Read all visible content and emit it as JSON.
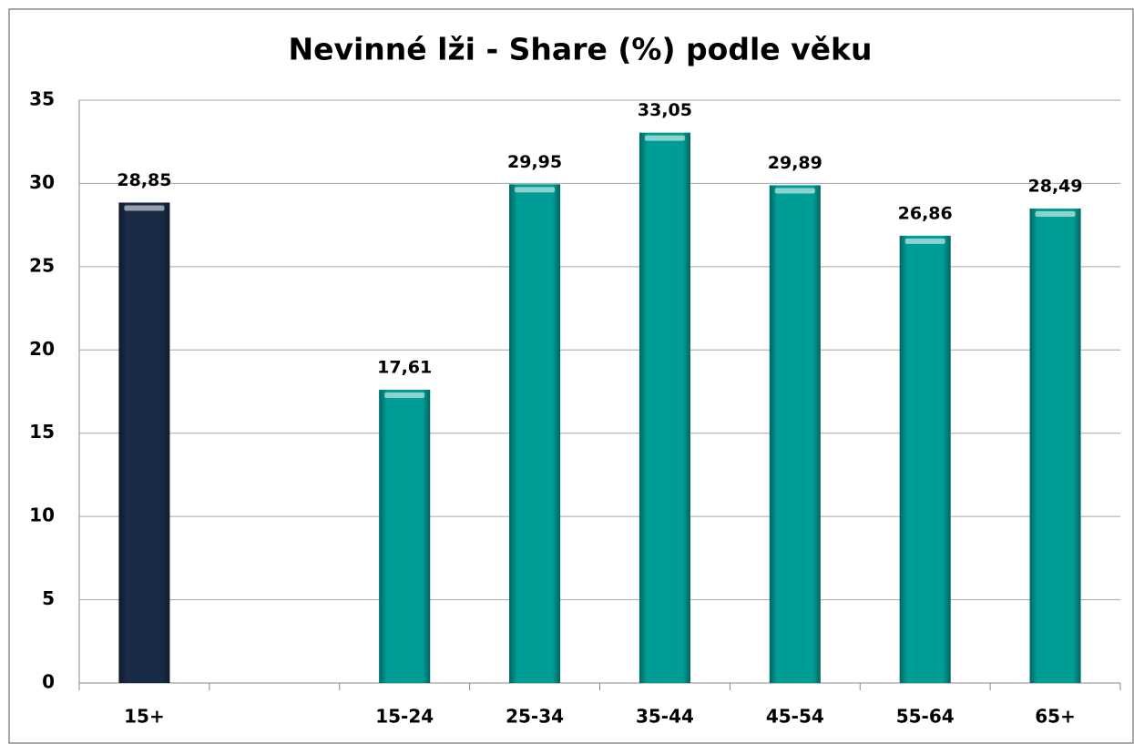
{
  "chart_data": {
    "type": "bar",
    "title": "Nevinné lži - Share (%) podle věku",
    "categories": [
      "15+",
      null,
      "15-24",
      "25-34",
      "35-44",
      "45-54",
      "55-64",
      "65+"
    ],
    "values": [
      28.85,
      null,
      17.61,
      29.95,
      33.05,
      29.89,
      26.86,
      28.49
    ],
    "value_labels": [
      "28,85",
      null,
      "17,61",
      "29,95",
      "33,05",
      "29,89",
      "26,86",
      "28,49"
    ],
    "colors": [
      "#182a45",
      null,
      "#009c96",
      "#009c96",
      "#009c96",
      "#009c96",
      "#009c96",
      "#009c96"
    ],
    "ylim": [
      0,
      35
    ],
    "yticks": [
      0,
      5,
      10,
      15,
      20,
      25,
      30,
      35
    ],
    "grid": true
  }
}
